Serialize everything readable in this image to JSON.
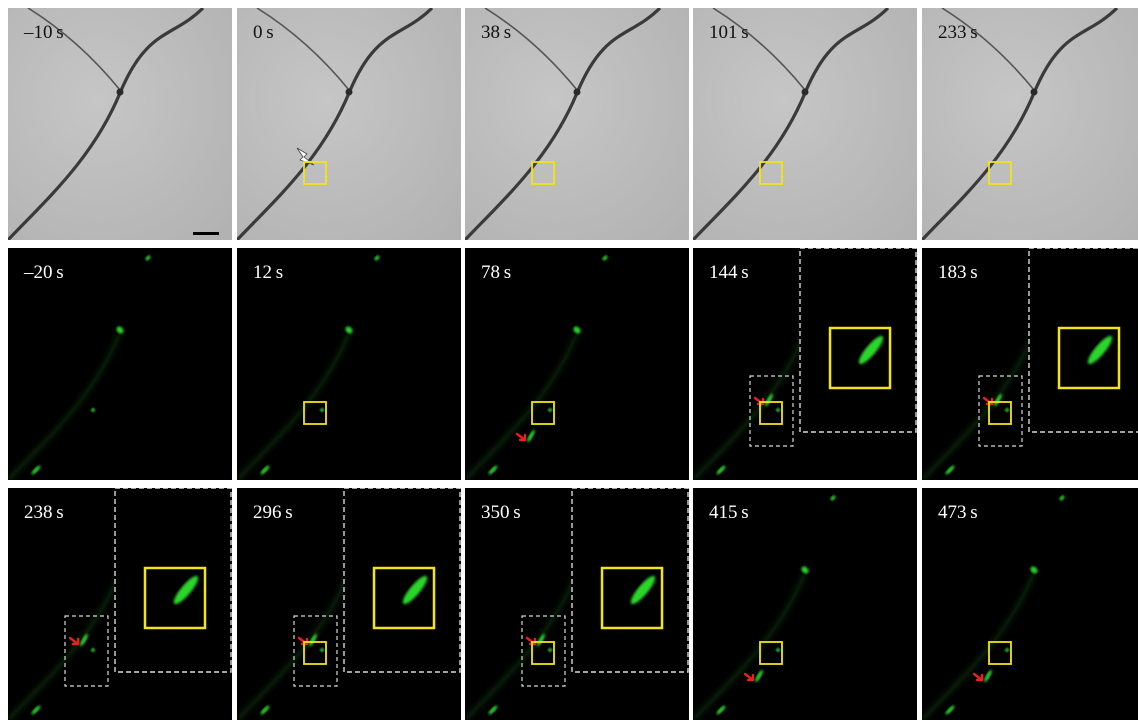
{
  "figure": {
    "rows": [
      {
        "kind": "brightfield",
        "panels": [
          {
            "label": "–10 s",
            "scale_bar": true
          },
          {
            "label": "0 s",
            "lightning": true
          },
          {
            "label": "38 s"
          },
          {
            "label": "101 s"
          },
          {
            "label": "233 s"
          }
        ]
      },
      {
        "kind": "fluorescence",
        "panels": [
          {
            "label": "–20 s"
          },
          {
            "label": "12 s"
          },
          {
            "label": "78 s",
            "arrow": true
          },
          {
            "label": "144 s",
            "arrow": true,
            "inset": true
          },
          {
            "label": "183 s",
            "arrow": true,
            "inset": true
          }
        ]
      },
      {
        "kind": "fluorescence",
        "panels": [
          {
            "label": "238 s",
            "arrow": true,
            "inset": true
          },
          {
            "label": "296 s",
            "arrow": true,
            "inset": true
          },
          {
            "label": "350 s",
            "arrow": true,
            "inset": true
          },
          {
            "label": "415 s",
            "arrow": true
          },
          {
            "label": "473 s",
            "arrow": true
          }
        ]
      }
    ],
    "colors": {
      "roi_box": "#f2e41a",
      "arrow": "#e8211e",
      "signal": "#2bd62b",
      "inset_frame": "#d9d9d9",
      "brightfield_bg": "#bdbdbd",
      "fluorescence_bg": "#000000",
      "label_dark": "#111111",
      "label_light": "#ffffff"
    },
    "icons": [
      "lightning-icon",
      "red-arrow-icon",
      "scale-bar"
    ]
  }
}
